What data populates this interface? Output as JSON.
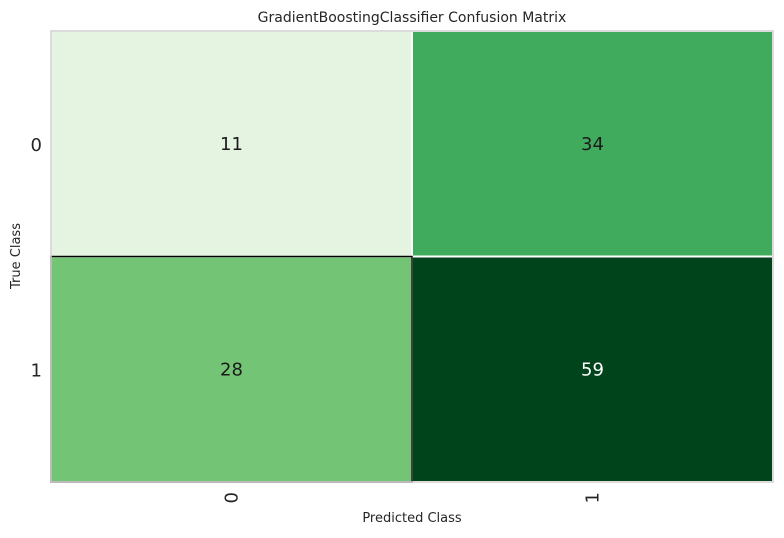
{
  "chart_data": {
    "type": "heatmap",
    "title": "GradientBoostingClassifier Confusion Matrix",
    "xlabel": "Predicted Class",
    "ylabel": "True Class",
    "x_categories": [
      "0",
      "1"
    ],
    "y_categories": [
      "0",
      "1"
    ],
    "values": [
      [
        11,
        34
      ],
      [
        28,
        59
      ]
    ],
    "colormap": "Greens",
    "grid": false,
    "legend": "none"
  },
  "colors": {
    "cell_0_0": "#e5f4e1",
    "cell_0_1": "#41ab5d",
    "cell_1_0": "#74c476",
    "cell_1_1": "#00441b",
    "text_dark": "#1a1a1a",
    "text_light": "#ffffff",
    "frame": "#cfcfcf",
    "separator": "#ffffff",
    "highlight_border": "#000000"
  }
}
